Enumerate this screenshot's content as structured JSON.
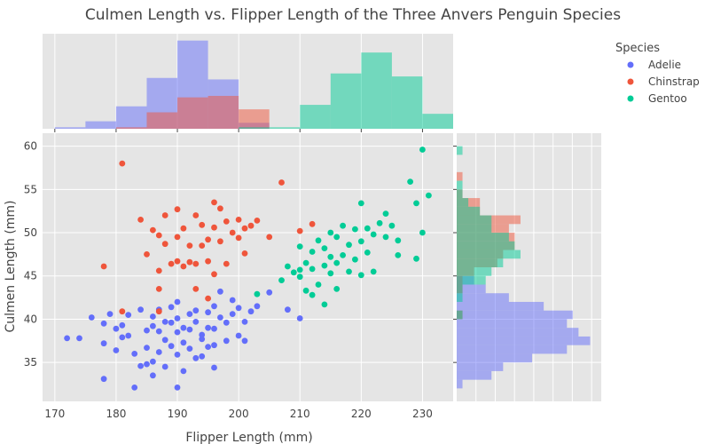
{
  "chart_data": {
    "type": "scatter",
    "title": "Culmen Length vs. Flipper Length of the Three Anvers Penguin Species",
    "xlabel": "Flipper Length (mm)",
    "ylabel": "Culmen Length (mm)",
    "xlim": [
      168,
      235
    ],
    "ylim": [
      30.5,
      61.5
    ],
    "x_ticks": [
      170,
      180,
      190,
      200,
      210,
      220,
      230
    ],
    "y_ticks": [
      35,
      40,
      45,
      50,
      55,
      60
    ],
    "grid": true,
    "legend": {
      "title": "Species",
      "placement": "top-right",
      "entries": [
        "Adelie",
        "Chinstrap",
        "Gentoo"
      ]
    },
    "series": [
      {
        "name": "Adelie",
        "color": "#636efa",
        "points": [
          [
            172,
            37.8
          ],
          [
            174,
            37.8
          ],
          [
            176,
            40.2
          ],
          [
            178,
            39.5
          ],
          [
            178,
            37.2
          ],
          [
            178,
            33.1
          ],
          [
            179,
            40.6
          ],
          [
            180,
            36.4
          ],
          [
            180,
            38.9
          ],
          [
            181,
            37.9
          ],
          [
            181,
            39.3
          ],
          [
            182,
            40.5
          ],
          [
            182,
            38.1
          ],
          [
            183,
            36.0
          ],
          [
            184,
            41.1
          ],
          [
            184,
            34.6
          ],
          [
            185,
            38.7
          ],
          [
            185,
            36.7
          ],
          [
            186,
            39.2
          ],
          [
            186,
            40.3
          ],
          [
            186,
            35.1
          ],
          [
            187,
            38.6
          ],
          [
            187,
            41.1
          ],
          [
            187,
            36.2
          ],
          [
            188,
            39.7
          ],
          [
            188,
            37.6
          ],
          [
            188,
            34.5
          ],
          [
            189,
            39.6
          ],
          [
            189,
            41.4
          ],
          [
            189,
            36.9
          ],
          [
            190,
            38.5
          ],
          [
            190,
            40.1
          ],
          [
            190,
            35.9
          ],
          [
            190,
            42.0
          ],
          [
            191,
            39.0
          ],
          [
            191,
            37.3
          ],
          [
            191,
            34.0
          ],
          [
            192,
            40.6
          ],
          [
            192,
            38.8
          ],
          [
            192,
            36.6
          ],
          [
            193,
            39.7
          ],
          [
            193,
            41.0
          ],
          [
            193,
            35.5
          ],
          [
            194,
            38.2
          ],
          [
            194,
            37.7
          ],
          [
            195,
            40.8
          ],
          [
            195,
            39.0
          ],
          [
            195,
            36.8
          ],
          [
            196,
            41.5
          ],
          [
            196,
            38.9
          ],
          [
            196,
            37.0
          ],
          [
            197,
            43.2
          ],
          [
            197,
            40.2
          ],
          [
            198,
            39.6
          ],
          [
            198,
            37.5
          ],
          [
            199,
            42.2
          ],
          [
            199,
            40.6
          ],
          [
            200,
            41.3
          ],
          [
            200,
            38.1
          ],
          [
            201,
            39.7
          ],
          [
            201,
            37.5
          ],
          [
            202,
            40.9
          ],
          [
            203,
            41.5
          ],
          [
            205,
            43.1
          ],
          [
            208,
            41.1
          ],
          [
            210,
            40.1
          ],
          [
            185,
            34.8
          ],
          [
            183,
            32.1
          ],
          [
            186,
            33.5
          ],
          [
            190,
            32.1
          ],
          [
            194,
            35.7
          ],
          [
            196,
            34.4
          ]
        ]
      },
      {
        "name": "Chinstrap",
        "color": "#ef553b",
        "points": [
          [
            178,
            46.1
          ],
          [
            181,
            58.0
          ],
          [
            184,
            51.5
          ],
          [
            185,
            47.5
          ],
          [
            186,
            50.3
          ],
          [
            187,
            49.7
          ],
          [
            187,
            45.6
          ],
          [
            187,
            43.5
          ],
          [
            188,
            52.0
          ],
          [
            188,
            48.7
          ],
          [
            189,
            46.4
          ],
          [
            190,
            52.7
          ],
          [
            190,
            49.5
          ],
          [
            190,
            46.7
          ],
          [
            191,
            46.1
          ],
          [
            191,
            50.5
          ],
          [
            192,
            46.6
          ],
          [
            192,
            48.5
          ],
          [
            193,
            52.0
          ],
          [
            193,
            46.4
          ],
          [
            194,
            48.5
          ],
          [
            194,
            50.9
          ],
          [
            195,
            49.2
          ],
          [
            195,
            46.7
          ],
          [
            196,
            53.5
          ],
          [
            196,
            50.6
          ],
          [
            196,
            45.2
          ],
          [
            197,
            52.8
          ],
          [
            197,
            49.0
          ],
          [
            198,
            46.4
          ],
          [
            198,
            51.3
          ],
          [
            199,
            50.0
          ],
          [
            200,
            49.4
          ],
          [
            200,
            51.5
          ],
          [
            201,
            50.5
          ],
          [
            201,
            47.6
          ],
          [
            202,
            50.8
          ],
          [
            203,
            51.4
          ],
          [
            205,
            49.5
          ],
          [
            207,
            55.8
          ],
          [
            210,
            50.2
          ],
          [
            212,
            51.0
          ],
          [
            195,
            42.4
          ],
          [
            193,
            43.5
          ],
          [
            181,
            40.9
          ],
          [
            187,
            40.9
          ]
        ]
      },
      {
        "name": "Gentoo",
        "color": "#00cc96",
        "points": [
          [
            203,
            42.9
          ],
          [
            207,
            44.5
          ],
          [
            208,
            46.1
          ],
          [
            209,
            45.4
          ],
          [
            210,
            44.9
          ],
          [
            210,
            48.4
          ],
          [
            211,
            46.5
          ],
          [
            211,
            43.3
          ],
          [
            212,
            47.8
          ],
          [
            212,
            45.8
          ],
          [
            213,
            49.1
          ],
          [
            213,
            44.0
          ],
          [
            214,
            46.2
          ],
          [
            214,
            48.2
          ],
          [
            215,
            45.3
          ],
          [
            215,
            50.0
          ],
          [
            215,
            47.2
          ],
          [
            216,
            46.5
          ],
          [
            216,
            49.5
          ],
          [
            216,
            43.5
          ],
          [
            217,
            47.4
          ],
          [
            217,
            50.8
          ],
          [
            218,
            45.5
          ],
          [
            218,
            48.6
          ],
          [
            219,
            46.9
          ],
          [
            219,
            50.4
          ],
          [
            220,
            49.0
          ],
          [
            220,
            45.1
          ],
          [
            221,
            50.5
          ],
          [
            221,
            47.7
          ],
          [
            222,
            49.8
          ],
          [
            222,
            45.5
          ],
          [
            223,
            51.1
          ],
          [
            224,
            49.5
          ],
          [
            225,
            50.8
          ],
          [
            226,
            49.1
          ],
          [
            228,
            55.9
          ],
          [
            229,
            53.4
          ],
          [
            230,
            59.6
          ],
          [
            230,
            50.0
          ],
          [
            231,
            54.3
          ],
          [
            212,
            42.8
          ],
          [
            214,
            41.7
          ],
          [
            210,
            45.7
          ],
          [
            220,
            53.4
          ],
          [
            224,
            52.2
          ],
          [
            226,
            47.4
          ],
          [
            229,
            47.0
          ]
        ]
      }
    ],
    "x_histogram": {
      "bins": [
        170,
        175,
        180,
        185,
        190,
        195,
        200,
        205,
        210,
        215,
        220,
        225,
        230,
        235
      ],
      "counts": {
        "Adelie": [
          1,
          5,
          15,
          34,
          59,
          33,
          4,
          0,
          0,
          0,
          0,
          0,
          0
        ],
        "Chinstrap": [
          0,
          0,
          1,
          11,
          21,
          22,
          13,
          0,
          0,
          0,
          0,
          0,
          0
        ],
        "Gentoo": [
          0,
          0,
          0,
          0,
          0,
          0,
          0,
          0,
          0,
          0,
          0,
          0,
          0
        ]
      }
    },
    "x_histogram_gentoo": {
      "bins": [
        200,
        205,
        210,
        215,
        220,
        225,
        230,
        235
      ],
      "counts": [
        1,
        1,
        16,
        37,
        51,
        35,
        10
      ]
    },
    "y_histogram": {
      "bins": [
        30,
        31,
        32,
        33,
        34,
        35,
        36,
        37,
        38,
        39,
        40,
        41,
        42,
        43,
        44,
        45,
        46,
        47,
        48,
        49,
        50,
        51,
        52,
        53,
        54,
        55,
        56,
        57,
        58,
        59,
        60
      ],
      "counts": {
        "Adelie": [
          0,
          0,
          1,
          6,
          8,
          13,
          19,
          23,
          21,
          19,
          20,
          15,
          9,
          5,
          3,
          0,
          0,
          0,
          0,
          0,
          0,
          0,
          0,
          0,
          0,
          0,
          0,
          0,
          0,
          0
        ],
        "Chinstrap": [
          0,
          0,
          0,
          0,
          0,
          0,
          0,
          0,
          0,
          0,
          1,
          0,
          0,
          1,
          1,
          3,
          7,
          8,
          10,
          10,
          9,
          11,
          4,
          4,
          1,
          0,
          1,
          0,
          0,
          0
        ],
        "Gentoo": [
          0,
          0,
          0,
          0,
          0,
          0,
          0,
          0,
          0,
          0,
          1,
          0,
          1,
          1,
          5,
          6,
          8,
          11,
          10,
          9,
          6,
          6,
          4,
          2,
          1,
          1,
          0,
          0,
          0,
          1
        ]
      }
    }
  }
}
